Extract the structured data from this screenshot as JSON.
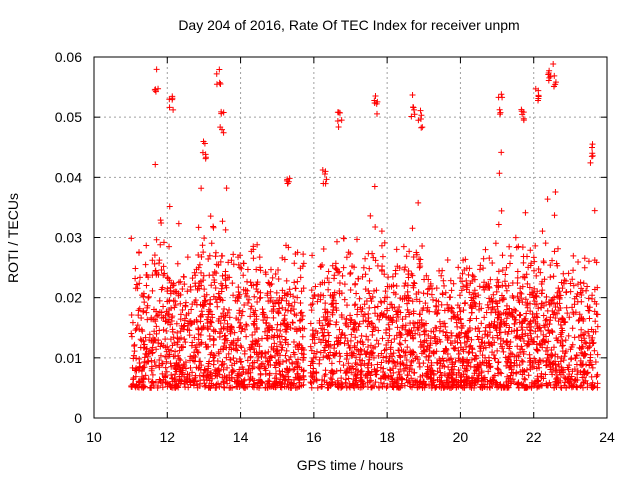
{
  "chart_data": {
    "type": "scatter",
    "title": "Day 204 of 2016, Rate Of TEC Index for receiver unpm",
    "xlabel": "GPS time / hours",
    "ylabel": "ROTI / TECUs",
    "xlim": [
      10,
      24
    ],
    "ylim": [
      0,
      0.06
    ],
    "x_ticks": [
      10,
      12,
      14,
      16,
      18,
      20,
      22,
      24
    ],
    "x_tick_labels": [
      "10",
      "12",
      "14",
      "16",
      "18",
      "20",
      "22",
      "24"
    ],
    "y_ticks": [
      0,
      0.01,
      0.02,
      0.03,
      0.04,
      0.05,
      0.06
    ],
    "y_tick_labels": [
      "0",
      "0.01",
      "0.02",
      "0.03",
      "0.04",
      "0.05",
      "0.06"
    ],
    "grid": true,
    "marker": "+",
    "marker_color": "#ff0000",
    "series": [
      {
        "name": "ROTI",
        "segments": [
          {
            "x_start": 11.0,
            "x_end": 15.75
          },
          {
            "x_start": 15.9,
            "x_end": 23.75
          }
        ],
        "typical_range": [
          0.005,
          0.03
        ],
        "peaks": [
          {
            "x": 11.7,
            "y": 0.058
          },
          {
            "x": 12.1,
            "y": 0.055
          },
          {
            "x": 13.0,
            "y": 0.047
          },
          {
            "x": 13.4,
            "y": 0.059
          },
          {
            "x": 13.5,
            "y": 0.051
          },
          {
            "x": 15.3,
            "y": 0.041
          },
          {
            "x": 16.3,
            "y": 0.042
          },
          {
            "x": 16.7,
            "y": 0.052
          },
          {
            "x": 17.7,
            "y": 0.054
          },
          {
            "x": 18.7,
            "y": 0.054
          },
          {
            "x": 18.9,
            "y": 0.052
          },
          {
            "x": 21.1,
            "y": 0.054
          },
          {
            "x": 21.7,
            "y": 0.053
          },
          {
            "x": 22.1,
            "y": 0.055
          },
          {
            "x": 22.45,
            "y": 0.058
          },
          {
            "x": 22.55,
            "y": 0.059
          },
          {
            "x": 23.6,
            "y": 0.046
          }
        ]
      }
    ]
  }
}
